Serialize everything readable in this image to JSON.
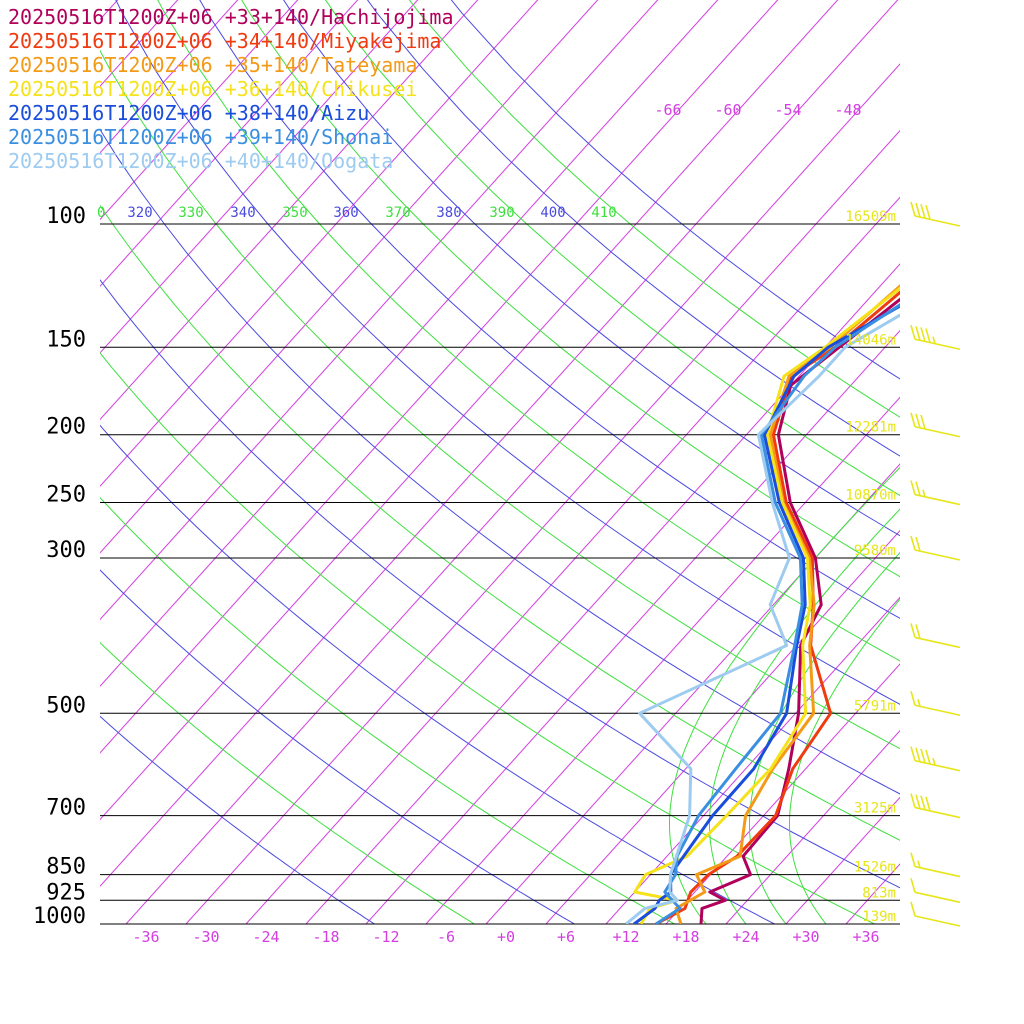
{
  "legend": [
    {
      "label": "20250516T1200Z+06 +33+140/Hachijojima",
      "color": "#b0005a"
    },
    {
      "label": "20250516T1200Z+06 +34+140/Miyakejima",
      "color": "#f03a10"
    },
    {
      "label": "20250516T1200Z+06 +35+140/Tateyama",
      "color": "#f39a17"
    },
    {
      "label": "20250516T1200Z+06 +36+140/Chikusei",
      "color": "#f5e21a"
    },
    {
      "label": "20250516T1200Z+06 +38+140/Aizu",
      "color": "#1a4ddb"
    },
    {
      "label": "20250516T1200Z+06 +39+140/Shonai",
      "color": "#3a8fe0"
    },
    {
      "label": "20250516T1200Z+06 +40+140/Oogata",
      "color": "#9ecbf0"
    }
  ],
  "chart_data": {
    "type": "line",
    "title": "",
    "pressure_levels": [
      "100",
      "150",
      "200",
      "250",
      "300",
      "500",
      "700",
      "850",
      "925",
      "1000"
    ],
    "x_ticks": [
      "-36",
      "-30",
      "-24",
      "-18",
      "-12",
      "-6",
      "+0",
      "+6",
      "+12",
      "+18",
      "+24",
      "+30",
      "+36"
    ],
    "heights": [
      "16509m",
      "14046m",
      "12281m",
      "10870m",
      "9580m",
      "5791m",
      "3125m",
      "1526m",
      "813m",
      "139m"
    ],
    "theta_labels": [
      "320",
      "330",
      "340",
      "350",
      "360",
      "370",
      "380",
      "390",
      "400",
      "410"
    ],
    "theta_first_partial": "0",
    "top_isotherm_labels": [
      "-66",
      "-60",
      "-54",
      "-48"
    ],
    "xlim": [
      -40,
      40
    ],
    "ylim": [
      1000,
      100
    ],
    "y_scale": "log",
    "x_unit": "degC",
    "series": [
      {
        "name": "Hachijojima",
        "color": "#b0005a",
        "points": [
          [
            1000,
            19.5
          ],
          [
            950,
            18.2
          ],
          [
            925,
            19.8
          ],
          [
            900,
            17.5
          ],
          [
            850,
            20.0
          ],
          [
            800,
            17.6
          ],
          [
            700,
            17.4
          ],
          [
            600,
            14.3
          ],
          [
            500,
            10.3
          ],
          [
            400,
            4.4
          ],
          [
            350,
            2.8
          ],
          [
            300,
            -2.0
          ],
          [
            250,
            -9.5
          ],
          [
            200,
            -16.8
          ],
          [
            170,
            -20.0
          ],
          [
            150,
            -18.6
          ],
          [
            100,
            -14.0
          ],
          [
            85,
            -13.5
          ],
          [
            70,
            -4.0
          ],
          [
            65,
            3.0
          ],
          [
            55,
            13.0
          ]
        ]
      },
      {
        "name": "Miyakejima",
        "color": "#f03a10",
        "points": [
          [
            1000,
            15.0
          ],
          [
            950,
            16.5
          ],
          [
            900,
            15.6
          ],
          [
            850,
            15.8
          ],
          [
            800,
            17.0
          ],
          [
            700,
            17.2
          ],
          [
            600,
            14.7
          ],
          [
            500,
            13.5
          ],
          [
            400,
            5.4
          ],
          [
            350,
            2.0
          ],
          [
            300,
            -2.3
          ],
          [
            250,
            -9.9
          ],
          [
            200,
            -17.3
          ],
          [
            165,
            -20.8
          ],
          [
            150,
            -19.0
          ],
          [
            100,
            -15.5
          ],
          [
            85,
            -15.0
          ],
          [
            70,
            -5.5
          ],
          [
            65,
            1.5
          ],
          [
            55,
            12.0
          ]
        ]
      },
      {
        "name": "Tateyama",
        "color": "#f39a17",
        "points": [
          [
            1000,
            17.5
          ],
          [
            950,
            15.6
          ],
          [
            900,
            17.0
          ],
          [
            850,
            14.6
          ],
          [
            800,
            17.3
          ],
          [
            700,
            14.2
          ],
          [
            600,
            12.7
          ],
          [
            500,
            11.8
          ],
          [
            400,
            5.3
          ],
          [
            350,
            2.1
          ],
          [
            300,
            -2.6
          ],
          [
            250,
            -10.2
          ],
          [
            200,
            -17.6
          ],
          [
            165,
            -21.0
          ],
          [
            150,
            -19.5
          ],
          [
            100,
            -16.5
          ],
          [
            85,
            -16.0
          ],
          [
            70,
            -6.5
          ],
          [
            65,
            0.8
          ],
          [
            55,
            11.5
          ]
        ]
      },
      {
        "name": "Chikusei",
        "color": "#f5e21a",
        "points": [
          [
            1000,
            13.5
          ],
          [
            950,
            13.0
          ],
          [
            925,
            15.0
          ],
          [
            900,
            10.0
          ],
          [
            850,
            9.5
          ],
          [
            800,
            12.0
          ],
          [
            700,
            12.3
          ],
          [
            600,
            12.5
          ],
          [
            500,
            11.0
          ],
          [
            400,
            4.6
          ],
          [
            350,
            1.7
          ],
          [
            300,
            -2.8
          ],
          [
            250,
            -10.3
          ],
          [
            200,
            -17.9
          ],
          [
            165,
            -21.5
          ],
          [
            150,
            -20.0
          ],
          [
            110,
            -16.5
          ],
          [
            100,
            -17.5
          ],
          [
            85,
            -17.0
          ],
          [
            70,
            -7.0
          ],
          [
            65,
            0.0
          ],
          [
            55,
            11.0
          ]
        ]
      },
      {
        "name": "Aizu",
        "color": "#1a4ddb",
        "points": [
          [
            1000,
            12.8
          ],
          [
            950,
            13.5
          ],
          [
            925,
            13.2
          ],
          [
            900,
            13.6
          ],
          [
            850,
            12.0
          ],
          [
            700,
            10.9
          ],
          [
            600,
            10.8
          ],
          [
            500,
            9.1
          ],
          [
            400,
            4.0
          ],
          [
            350,
            1.2
          ],
          [
            300,
            -3.2
          ],
          [
            250,
            -10.6
          ],
          [
            200,
            -18.2
          ],
          [
            165,
            -20.5
          ],
          [
            150,
            -19.7
          ],
          [
            125,
            -15.0
          ],
          [
            100,
            -14.5
          ],
          [
            85,
            -14.0
          ],
          [
            70,
            -5.0
          ],
          [
            65,
            2.0
          ],
          [
            55,
            13.5
          ]
        ]
      },
      {
        "name": "Shonai",
        "color": "#3a8fe0",
        "points": [
          [
            1000,
            15.0
          ],
          [
            950,
            16.0
          ],
          [
            925,
            14.5
          ],
          [
            900,
            13.0
          ],
          [
            850,
            12.5
          ],
          [
            800,
            11.0
          ],
          [
            700,
            9.5
          ],
          [
            600,
            9.0
          ],
          [
            500,
            8.5
          ],
          [
            400,
            3.8
          ],
          [
            350,
            0.9
          ],
          [
            300,
            -3.5
          ],
          [
            250,
            -11.0
          ],
          [
            200,
            -18.5
          ],
          [
            165,
            -19.5
          ],
          [
            150,
            -19.0
          ],
          [
            125,
            -15.5
          ],
          [
            100,
            -14.0
          ],
          [
            85,
            -13.5
          ],
          [
            70,
            -4.5
          ],
          [
            65,
            2.5
          ],
          [
            55,
            14.0
          ]
        ]
      },
      {
        "name": "Oogata",
        "color": "#9ecbf0",
        "points": [
          [
            1000,
            12.0
          ],
          [
            950,
            12.5
          ],
          [
            925,
            15.0
          ],
          [
            900,
            13.5
          ],
          [
            850,
            12.0
          ],
          [
            700,
            8.6
          ],
          [
            600,
            4.5
          ],
          [
            500,
            -5.6
          ],
          [
            400,
            3.0
          ],
          [
            350,
            -2.3
          ],
          [
            300,
            -4.6
          ],
          [
            250,
            -11.3
          ],
          [
            200,
            -18.8
          ],
          [
            165,
            -18.0
          ],
          [
            150,
            -18.0
          ],
          [
            125,
            -13.5
          ],
          [
            100,
            -11.0
          ],
          [
            85,
            -11.0
          ],
          [
            70,
            -2.0
          ],
          [
            65,
            4.0
          ],
          [
            55,
            15.0
          ]
        ]
      }
    ],
    "wind_barbs": [
      {
        "pressure": "100",
        "speed_kt": 40
      },
      {
        "pressure": "150",
        "speed_kt": 45
      },
      {
        "pressure": "200",
        "speed_kt": 30
      },
      {
        "pressure": "250",
        "speed_kt": 25
      },
      {
        "pressure": "300",
        "speed_kt": 20
      },
      {
        "pressure": "400",
        "speed_kt": 20
      },
      {
        "pressure": "500",
        "speed_kt": 15
      },
      {
        "pressure": "600",
        "speed_kt": 45
      },
      {
        "pressure": "700",
        "speed_kt": 40
      },
      {
        "pressure": "850",
        "speed_kt": 15
      },
      {
        "pressure": "925",
        "speed_kt": 10
      },
      {
        "pressure": "1000",
        "speed_kt": 10
      }
    ],
    "grid": true,
    "legend_position": "top-left"
  }
}
